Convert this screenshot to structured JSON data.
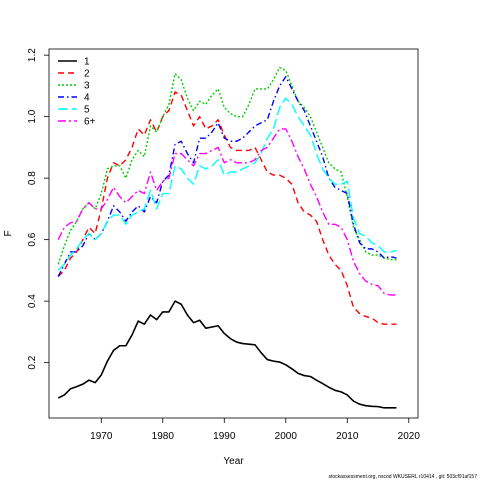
{
  "chart_data": {
    "type": "line",
    "xlabel": "Year",
    "ylabel": "F",
    "xlim": [
      1961.5,
      2021.5
    ],
    "ylim": [
      0.02,
      1.22
    ],
    "x_ticks": [
      1970,
      1980,
      1990,
      2000,
      2010,
      2020
    ],
    "y_ticks": [
      0.2,
      0.4,
      0.6,
      0.8,
      1.0,
      1.2
    ],
    "y_tick_labels": [
      "0.2",
      "0.4",
      "0.6",
      "0.8",
      "1.0",
      "1.2"
    ],
    "grid": false,
    "legend_position": "top-left",
    "footnote": "stockassessment.org, nscod WKUSERL r10414 , git: 503cf91af157",
    "series": [
      {
        "name": "1",
        "color": "#000000",
        "dash": "solid",
        "width": 1.6,
        "x": [
          1963,
          1964,
          1965,
          1966,
          1967,
          1968,
          1969,
          1970,
          1971,
          1972,
          1973,
          1974,
          1975,
          1976,
          1977,
          1978,
          1979,
          1980,
          1981,
          1982,
          1983,
          1984,
          1985,
          1986,
          1987,
          1988,
          1989,
          1990,
          1991,
          1992,
          1993,
          1994,
          1995,
          1996,
          1997,
          1998,
          1999,
          2000,
          2001,
          2002,
          2003,
          2004,
          2005,
          2006,
          2007,
          2008,
          2009,
          2010,
          2011,
          2012,
          2013,
          2014,
          2015,
          2016,
          2017,
          2018
        ],
        "values": [
          0.085,
          0.095,
          0.115,
          0.122,
          0.13,
          0.143,
          0.135,
          0.16,
          0.205,
          0.24,
          0.255,
          0.255,
          0.29,
          0.335,
          0.325,
          0.355,
          0.34,
          0.365,
          0.365,
          0.4,
          0.39,
          0.355,
          0.33,
          0.338,
          0.312,
          0.316,
          0.32,
          0.295,
          0.278,
          0.267,
          0.262,
          0.26,
          0.258,
          0.232,
          0.21,
          0.205,
          0.202,
          0.193,
          0.18,
          0.165,
          0.158,
          0.155,
          0.143,
          0.132,
          0.12,
          0.11,
          0.105,
          0.095,
          0.075,
          0.065,
          0.06,
          0.058,
          0.057,
          0.053,
          0.053,
          0.053
        ]
      },
      {
        "name": "2",
        "color": "#ff0000",
        "dash": "6,4",
        "width": 1.4,
        "x": [
          1963,
          1964,
          1965,
          1966,
          1967,
          1968,
          1969,
          1970,
          1971,
          1972,
          1973,
          1974,
          1975,
          1976,
          1977,
          1978,
          1979,
          1980,
          1981,
          1982,
          1983,
          1984,
          1985,
          1986,
          1987,
          1988,
          1989,
          1990,
          1991,
          1992,
          1993,
          1994,
          1995,
          1996,
          1997,
          1998,
          1999,
          2000,
          2001,
          2002,
          2003,
          2004,
          2005,
          2006,
          2007,
          2008,
          2009,
          2010,
          2011,
          2012,
          2013,
          2014,
          2015,
          2016,
          2017,
          2018
        ],
        "values": [
          0.48,
          0.5,
          0.54,
          0.56,
          0.6,
          0.64,
          0.62,
          0.7,
          0.8,
          0.85,
          0.84,
          0.86,
          0.9,
          0.96,
          0.94,
          0.99,
          0.95,
          1.0,
          1.02,
          1.08,
          1.07,
          1.02,
          0.97,
          1.0,
          0.96,
          0.97,
          0.99,
          0.94,
          0.9,
          0.89,
          0.89,
          0.89,
          0.9,
          0.86,
          0.82,
          0.81,
          0.81,
          0.8,
          0.78,
          0.72,
          0.69,
          0.68,
          0.66,
          0.6,
          0.55,
          0.52,
          0.5,
          0.45,
          0.38,
          0.36,
          0.35,
          0.345,
          0.33,
          0.325,
          0.325,
          0.325
        ]
      },
      {
        "name": "3",
        "color": "#00cd00",
        "dash": "2,2",
        "width": 1.4,
        "x": [
          1963,
          1964,
          1965,
          1966,
          1967,
          1968,
          1969,
          1970,
          1971,
          1972,
          1973,
          1974,
          1975,
          1976,
          1977,
          1978,
          1979,
          1980,
          1981,
          1982,
          1983,
          1984,
          1985,
          1986,
          1987,
          1988,
          1989,
          1990,
          1991,
          1992,
          1993,
          1994,
          1995,
          1996,
          1997,
          1998,
          1999,
          2000,
          2001,
          2002,
          2003,
          2004,
          2005,
          2006,
          2007,
          2008,
          2009,
          2010,
          2011,
          2012,
          2013,
          2014,
          2015,
          2016,
          2017,
          2018
        ],
        "values": [
          0.52,
          0.58,
          0.63,
          0.66,
          0.7,
          0.72,
          0.7,
          0.75,
          0.83,
          0.84,
          0.84,
          0.8,
          0.86,
          0.89,
          0.87,
          0.97,
          0.95,
          1.0,
          1.04,
          1.14,
          1.12,
          1.06,
          1.02,
          1.05,
          1.04,
          1.07,
          1.09,
          1.03,
          1.01,
          1.0,
          1.0,
          1.04,
          1.09,
          1.09,
          1.09,
          1.12,
          1.16,
          1.15,
          1.1,
          1.05,
          1.03,
          1.0,
          0.95,
          0.9,
          0.85,
          0.83,
          0.82,
          0.74,
          0.64,
          0.6,
          0.56,
          0.55,
          0.55,
          0.54,
          0.535,
          0.535
        ]
      },
      {
        "name": "4",
        "color": "#0000ff",
        "dash": "6,3,1.5,3",
        "width": 1.4,
        "x": [
          1963,
          1964,
          1965,
          1966,
          1967,
          1968,
          1969,
          1970,
          1971,
          1972,
          1973,
          1974,
          1975,
          1976,
          1977,
          1978,
          1979,
          1980,
          1981,
          1982,
          1983,
          1984,
          1985,
          1986,
          1987,
          1988,
          1989,
          1990,
          1991,
          1992,
          1993,
          1994,
          1995,
          1996,
          1997,
          1998,
          1999,
          2000,
          2001,
          2002,
          2003,
          2004,
          2005,
          2006,
          2007,
          2008,
          2009,
          2010,
          2011,
          2012,
          2013,
          2014,
          2015,
          2016,
          2017,
          2018
        ],
        "values": [
          0.48,
          0.52,
          0.56,
          0.56,
          0.58,
          0.62,
          0.6,
          0.62,
          0.66,
          0.71,
          0.69,
          0.66,
          0.69,
          0.71,
          0.69,
          0.74,
          0.72,
          0.79,
          0.81,
          0.91,
          0.92,
          0.88,
          0.85,
          0.93,
          0.93,
          0.95,
          0.98,
          0.93,
          0.92,
          0.92,
          0.93,
          0.95,
          0.97,
          0.98,
          0.99,
          1.05,
          1.1,
          1.13,
          1.09,
          1.05,
          1.02,
          0.97,
          0.92,
          0.87,
          0.8,
          0.77,
          0.76,
          0.75,
          0.65,
          0.59,
          0.57,
          0.57,
          0.56,
          0.54,
          0.545,
          0.54
        ]
      },
      {
        "name": "5",
        "color": "#00ffff",
        "dash": "10,4",
        "width": 1.4,
        "x": [
          1963,
          1964,
          1965,
          1966,
          1967,
          1968,
          1969,
          1970,
          1971,
          1972,
          1973,
          1974,
          1975,
          1976,
          1977,
          1978,
          1979,
          1980,
          1981,
          1982,
          1983,
          1984,
          1985,
          1986,
          1987,
          1988,
          1989,
          1990,
          1991,
          1992,
          1993,
          1994,
          1995,
          1996,
          1997,
          1998,
          1999,
          2000,
          2001,
          2002,
          2003,
          2004,
          2005,
          2006,
          2007,
          2008,
          2009,
          2010,
          2011,
          2012,
          2013,
          2014,
          2015,
          2016,
          2017,
          2018
        ],
        "values": [
          0.5,
          0.52,
          0.55,
          0.57,
          0.6,
          0.62,
          0.6,
          0.62,
          0.66,
          0.68,
          0.68,
          0.65,
          0.68,
          0.69,
          0.7,
          0.76,
          0.7,
          0.75,
          0.75,
          0.84,
          0.83,
          0.8,
          0.78,
          0.84,
          0.83,
          0.84,
          0.86,
          0.81,
          0.82,
          0.82,
          0.83,
          0.84,
          0.85,
          0.88,
          0.93,
          0.96,
          1.03,
          1.06,
          1.04,
          1.0,
          0.97,
          0.94,
          0.88,
          0.83,
          0.8,
          0.78,
          0.78,
          0.79,
          0.67,
          0.62,
          0.61,
          0.59,
          0.58,
          0.56,
          0.56,
          0.565
        ]
      },
      {
        "name": "6+",
        "color": "#ff00ff",
        "dash": "8,3,2,3",
        "width": 1.4,
        "x": [
          1963,
          1964,
          1965,
          1966,
          1967,
          1968,
          1969,
          1970,
          1971,
          1972,
          1973,
          1974,
          1975,
          1976,
          1977,
          1978,
          1979,
          1980,
          1981,
          1982,
          1983,
          1984,
          1985,
          1986,
          1987,
          1988,
          1989,
          1990,
          1991,
          1992,
          1993,
          1994,
          1995,
          1996,
          1997,
          1998,
          1999,
          2000,
          2001,
          2002,
          2003,
          2004,
          2005,
          2006,
          2007,
          2008,
          2009,
          2010,
          2011,
          2012,
          2013,
          2014,
          2015,
          2016,
          2017,
          2018
        ],
        "values": [
          0.6,
          0.64,
          0.655,
          0.66,
          0.7,
          0.72,
          0.7,
          0.7,
          0.73,
          0.77,
          0.74,
          0.72,
          0.74,
          0.76,
          0.75,
          0.82,
          0.76,
          0.79,
          0.8,
          0.88,
          0.88,
          0.86,
          0.84,
          0.88,
          0.88,
          0.89,
          0.9,
          0.85,
          0.86,
          0.85,
          0.85,
          0.85,
          0.86,
          0.89,
          0.9,
          0.93,
          0.96,
          0.96,
          0.92,
          0.87,
          0.83,
          0.78,
          0.74,
          0.69,
          0.65,
          0.65,
          0.64,
          0.6,
          0.53,
          0.49,
          0.465,
          0.455,
          0.45,
          0.425,
          0.42,
          0.42
        ]
      }
    ]
  }
}
